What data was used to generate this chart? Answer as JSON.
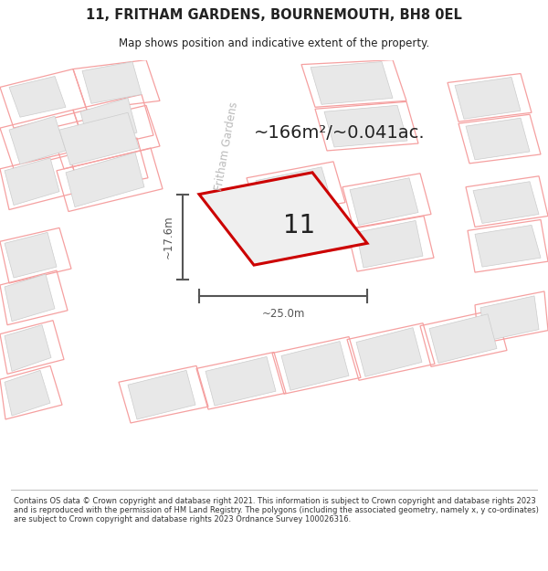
{
  "title": "11, FRITHAM GARDENS, BOURNEMOUTH, BH8 0EL",
  "subtitle": "Map shows position and indicative extent of the property.",
  "footer": "Contains OS data © Crown copyright and database right 2021. This information is subject to Crown copyright and database rights 2023 and is reproduced with the permission of HM Land Registry. The polygons (including the associated geometry, namely x, y co-ordinates) are subject to Crown copyright and database rights 2023 Ordnance Survey 100026316.",
  "area_label": "~166m²/~0.041ac.",
  "number_label": "11",
  "width_label": "~25.0m",
  "height_label": "~17.6m",
  "street_label": "Fritham Gardens",
  "plot_line_color": "#cc0000",
  "dim_color": "#555555",
  "text_color": "#222222",
  "pink_line_color": "#f5a0a0",
  "building_fill": "#e8e8e8",
  "building_edge": "#cccccc",
  "road_fill": "#ffffff",
  "map_bg": "#f0f0f0",
  "figsize": [
    6.0,
    6.25
  ],
  "dpi": 100
}
